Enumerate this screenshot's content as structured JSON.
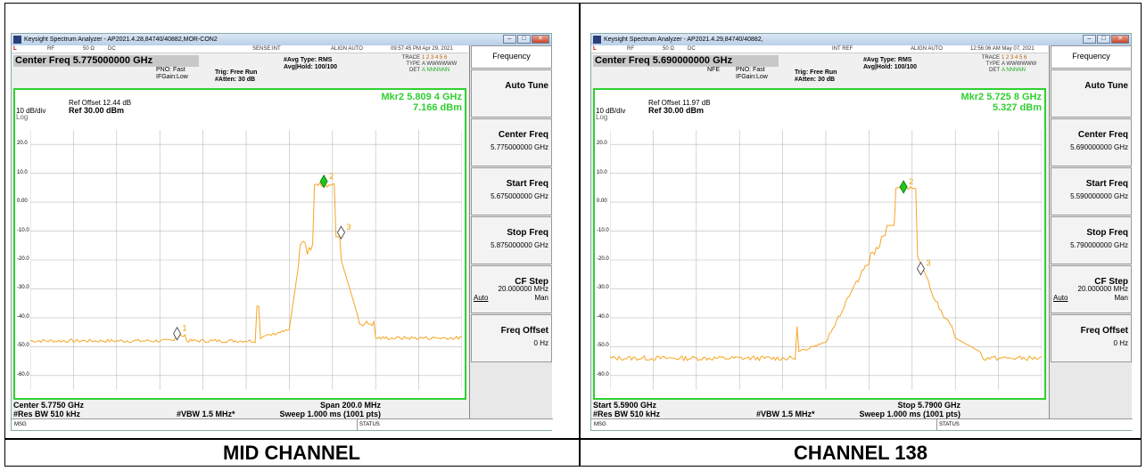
{
  "captions": {
    "left": "MID CHANNEL",
    "right": "CHANNEL 138"
  },
  "colors": {
    "trace": "#f5a623",
    "marker_active": "#1ec61e",
    "border": "#2fd02f"
  },
  "left": {
    "window_title": "Keysight Spectrum Analyzer - AP2021.4.28,84740/40882,MOR-CON2",
    "status": {
      "mode": "L",
      "rf": "RF",
      "imp": "50 Ω",
      "coupling": "DC",
      "sense": "SENSE:INT",
      "align": "ALIGN AUTO",
      "time": "09:57:45 PM Apr 29, 2021"
    },
    "center_freq": "Center Freq 5.775000000 GHz",
    "pno": "PNO: Fast",
    "ifgain": "IFGain:Low",
    "nfe": "",
    "trig": "Trig: Free Run",
    "atten": "#Atten: 30 dB",
    "avg_type": "#Avg Type: RMS",
    "avg_hold": "Avg|Hold: 100/100",
    "trace_label": "TRACE",
    "trace_nums": "1 2 3 4 5 6",
    "type_label": "TYPE",
    "type_val": "A WWWWWW",
    "det_label": "DET",
    "det_val": "A NNNNNN",
    "ref_offset": "Ref Offset 12.44 dB",
    "scale": "10 dB/div",
    "log": "Log",
    "ref_level": "Ref 30.00 dBm",
    "mkr_freq": "Mkr2 5.809 4 GHz",
    "mkr_val": "7.166 dBm",
    "yticks": [
      "20.0",
      "10.0",
      "0.00",
      "-10.0",
      "-20.0",
      "-30.0",
      "-40.0",
      "-50.0",
      "-60.0"
    ],
    "bottom_left": "Center 5.7750 GHz",
    "bottom_right": "Span 200.0 MHz",
    "rbw": "#Res BW 510 kHz",
    "vbw": "#VBW 1.5 MHz*",
    "sweep": "Sweep  1.000 ms (1001 pts)",
    "msg": "MSG",
    "status_label": "STATUS",
    "markers": [
      {
        "label": "1",
        "x": 0.34,
        "y": -45.5,
        "active": false
      },
      {
        "label": "2",
        "x": 0.68,
        "y": 7.2,
        "active": true
      },
      {
        "label": "3",
        "x": 0.72,
        "y": -10.5,
        "active": false
      }
    ],
    "softkeys": {
      "title": "Frequency",
      "auto_tune": "Auto Tune",
      "center": {
        "label": "Center Freq",
        "value": "5.775000000 GHz"
      },
      "start": {
        "label": "Start Freq",
        "value": "5.675000000 GHz"
      },
      "stop": {
        "label": "Stop Freq",
        "value": "5.875000000 GHz"
      },
      "cf_step": {
        "label": "CF Step",
        "value": "20.000000 MHz",
        "auto": "Auto",
        "man": "Man"
      },
      "offset": {
        "label": "Freq Offset",
        "value": "0 Hz"
      }
    }
  },
  "right": {
    "window_title": "Keysight Spectrum Analyzer - AP2021.4.29,84740/40882,",
    "status": {
      "mode": "L",
      "rf": "RF",
      "imp": "50 Ω",
      "coupling": "DC",
      "sense": "INT REF",
      "align": "ALIGN AUTO",
      "time": "12:56:06 AM May 07, 2021"
    },
    "center_freq": "Center Freq 5.690000000 GHz",
    "pno": "PNO: Fast",
    "ifgain": "IFGain:Low",
    "nfe": "NFE",
    "trig": "Trig: Free Run",
    "atten": "#Atten: 30 dB",
    "avg_type": "#Avg Type: RMS",
    "avg_hold": "Avg|Hold: 100/100",
    "trace_label": "TRACE",
    "trace_nums": "1 2 3 4 5 6",
    "type_label": "TYPE",
    "type_val": "A WWWWWW",
    "det_label": "DET",
    "det_val": "A NNNNN",
    "ref_offset": "Ref Offset 11.97 dB",
    "scale": "10 dB/div",
    "log": "Log",
    "ref_level": "Ref 30.00 dBm",
    "mkr_freq": "Mkr2 5.725 8 GHz",
    "mkr_val": "5.327 dBm",
    "yticks": [
      "20.0",
      "10.0",
      "0.00",
      "-10.0",
      "-20.0",
      "-30.0",
      "-40.0",
      "-50.0",
      "-60.0"
    ],
    "bottom_left": "Start 5.5900 GHz",
    "bottom_right": "Stop 5.7900 GHz",
    "rbw": "#Res BW 510 kHz",
    "vbw": "#VBW 1.5 MHz*",
    "sweep": "Sweep  1.000 ms (1001 pts)",
    "msg": "MSG",
    "status_label": "STATUS",
    "markers": [
      {
        "label": "2",
        "x": 0.68,
        "y": 5.3,
        "active": true
      },
      {
        "label": "3",
        "x": 0.72,
        "y": -23,
        "active": false
      }
    ],
    "softkeys": {
      "title": "Frequency",
      "auto_tune": "Auto Tune",
      "center": {
        "label": "Center Freq",
        "value": "5.690000000 GHz"
      },
      "start": {
        "label": "Start Freq",
        "value": "5.590000000 GHz"
      },
      "stop": {
        "label": "Stop Freq",
        "value": "5.790000000 GHz"
      },
      "cf_step": {
        "label": "CF Step",
        "value": "20.000000 MHz",
        "auto": "Auto",
        "man": "Man"
      },
      "offset": {
        "label": "Freq Offset",
        "value": "0 Hz"
      }
    }
  }
}
